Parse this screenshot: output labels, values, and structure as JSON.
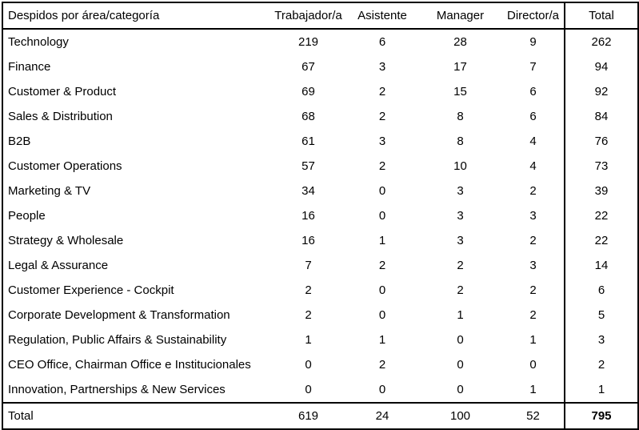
{
  "chart_data": {
    "type": "table",
    "title": "Despidos por área/categoría",
    "header": {
      "category_label": "Despidos por área/categoría",
      "columns": [
        "Trabajador/a",
        "Asistente",
        "Manager",
        "Director/a",
        "Total"
      ]
    },
    "rows": [
      {
        "category": "Technology",
        "values": [
          219,
          6,
          28,
          9,
          262
        ]
      },
      {
        "category": "Finance",
        "values": [
          67,
          3,
          17,
          7,
          94
        ]
      },
      {
        "category": "Customer & Product",
        "values": [
          69,
          2,
          15,
          6,
          92
        ]
      },
      {
        "category": "Sales & Distribution",
        "values": [
          68,
          2,
          8,
          6,
          84
        ]
      },
      {
        "category": "B2B",
        "values": [
          61,
          3,
          8,
          4,
          76
        ]
      },
      {
        "category": "Customer Operations",
        "values": [
          57,
          2,
          10,
          4,
          73
        ]
      },
      {
        "category": "Marketing & TV",
        "values": [
          34,
          0,
          3,
          2,
          39
        ]
      },
      {
        "category": "People",
        "values": [
          16,
          0,
          3,
          3,
          22
        ]
      },
      {
        "category": "Strategy & Wholesale",
        "values": [
          16,
          1,
          3,
          2,
          22
        ]
      },
      {
        "category": "Legal & Assurance",
        "values": [
          7,
          2,
          2,
          3,
          14
        ]
      },
      {
        "category": "Customer Experience - Cockpit",
        "values": [
          2,
          0,
          2,
          2,
          6
        ]
      },
      {
        "category": "Corporate Development & Transformation",
        "values": [
          2,
          0,
          1,
          2,
          5
        ]
      },
      {
        "category": "Regulation, Public Affairs & Sustainability",
        "values": [
          1,
          1,
          0,
          1,
          3
        ]
      },
      {
        "category": "CEO Office, Chairman Office e Institucionales",
        "values": [
          0,
          2,
          0,
          0,
          2
        ]
      },
      {
        "category": "Innovation, Partnerships & New Services",
        "values": [
          0,
          0,
          0,
          1,
          1
        ]
      }
    ],
    "footer": {
      "label": "Total",
      "values": [
        619,
        24,
        100,
        52
      ],
      "grand_total": 795
    },
    "layout": {
      "grid": "outer border, rule under header, rule above total row, vertical rule before Total column",
      "number_alignment": "center",
      "category_alignment": "left"
    },
    "styles": {
      "text_color": "#000000",
      "border_color": "#000000",
      "background": "#ffffff",
      "grand_total_bold": true
    }
  }
}
